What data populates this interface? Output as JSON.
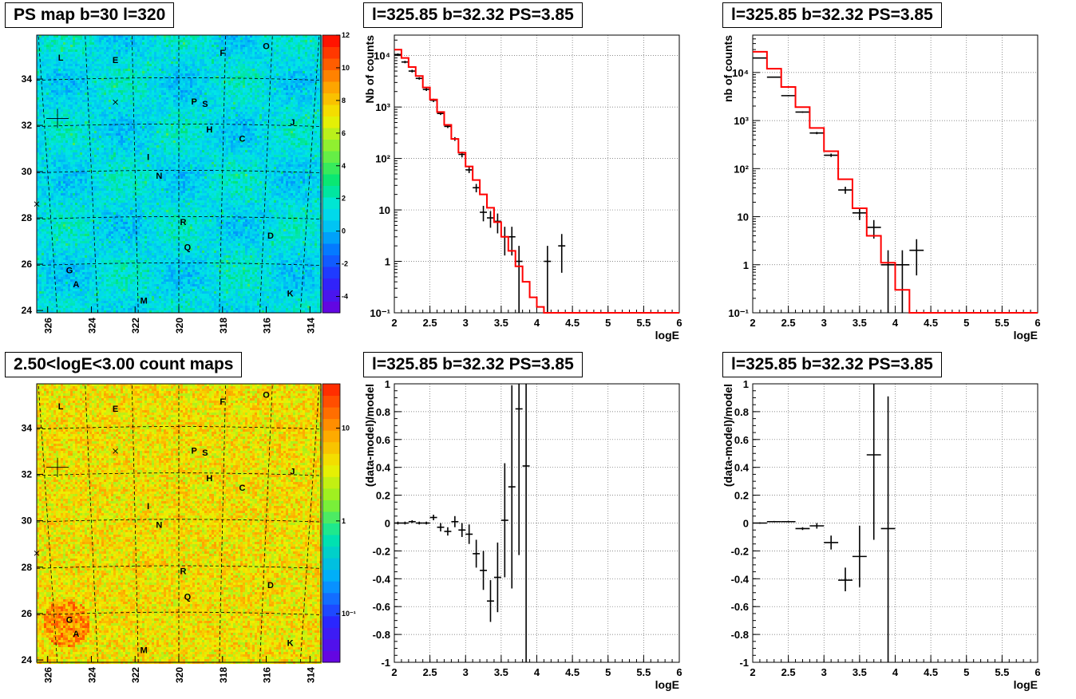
{
  "titles": {
    "map_top": "PS map b=30 l=320",
    "map_bottom": "2.50<logE<3.00 count maps",
    "spec_mid": "l=325.85 b=32.32 PS=3.85",
    "spec_right": "l=325.85 b=32.32 PS=3.85",
    "res_mid": "l=325.85 b=32.32 PS=3.85",
    "res_right": "l=325.85 b=32.32 PS=3.85"
  },
  "colors": {
    "data": "#000000",
    "model": "#ff0000",
    "grid": "#666666"
  },
  "chart_data": [
    {
      "id": "ps_map",
      "type": "heatmap",
      "title": "PS map b=30 l=320",
      "xlim": [
        326.5,
        313.5
      ],
      "ylim": [
        23.9,
        35.9
      ],
      "x_ticks": [
        "326",
        "324",
        "322",
        "320",
        "318",
        "316",
        "314"
      ],
      "y_ticks": [
        "24",
        "26",
        "28",
        "30",
        "32",
        "34"
      ],
      "colorbar_ticks": [
        "-4",
        "-2",
        "0",
        "2",
        "4",
        "6",
        "8",
        "10",
        "12"
      ],
      "colorbar_range": [
        -5,
        12
      ],
      "source_labels": [
        {
          "label": "L",
          "l": 325.4,
          "b": 34.8
        },
        {
          "label": "E",
          "l": 322.9,
          "b": 34.7
        },
        {
          "label": "F",
          "l": 318.0,
          "b": 35.0
        },
        {
          "label": "O",
          "l": 316.0,
          "b": 35.3
        },
        {
          "label": "P",
          "l": 319.3,
          "b": 32.9
        },
        {
          "label": "S",
          "l": 318.8,
          "b": 32.8
        },
        {
          "label": "H",
          "l": 318.6,
          "b": 31.7
        },
        {
          "label": "J",
          "l": 314.8,
          "b": 32.0
        },
        {
          "label": "C",
          "l": 317.1,
          "b": 31.3
        },
        {
          "label": "I",
          "l": 321.4,
          "b": 30.5
        },
        {
          "label": "N",
          "l": 320.9,
          "b": 29.7
        },
        {
          "label": "R",
          "l": 319.8,
          "b": 27.7
        },
        {
          "label": "D",
          "l": 315.8,
          "b": 27.1
        },
        {
          "label": "Q",
          "l": 319.6,
          "b": 26.6
        },
        {
          "label": "G",
          "l": 325.0,
          "b": 25.6
        },
        {
          "label": "A",
          "l": 324.7,
          "b": 25.0
        },
        {
          "label": "K",
          "l": 314.9,
          "b": 24.6
        },
        {
          "label": "M",
          "l": 321.6,
          "b": 24.3
        }
      ]
    },
    {
      "id": "count_map",
      "type": "heatmap",
      "title": "2.50<logE<3.00 count maps",
      "xlim": [
        326.5,
        313.5
      ],
      "ylim": [
        23.9,
        35.9
      ],
      "x_ticks": [
        "326",
        "324",
        "322",
        "320",
        "318",
        "316",
        "314"
      ],
      "y_ticks": [
        "24",
        "26",
        "28",
        "30",
        "32",
        "34"
      ],
      "colorbar_ticks": [
        "10",
        "1",
        "10⁻¹"
      ],
      "log_scale": true,
      "colorbar_range": [
        0.03,
        30
      ]
    },
    {
      "id": "spectrum_fine",
      "type": "line",
      "title": "l=325.85 b=32.32 PS=3.85",
      "xlabel": "logE",
      "ylabel": "Nb of counts",
      "xlim": [
        2,
        6
      ],
      "ylim": [
        0.1,
        25000
      ],
      "log_y": true,
      "grid": true,
      "x_ticks": [
        "2",
        "2.5",
        "3",
        "3.5",
        "4",
        "4.5",
        "5",
        "5.5",
        "6"
      ],
      "y_ticks": [
        {
          "v": 0.1,
          "t": "10⁻¹"
        },
        {
          "v": 1,
          "t": "1"
        },
        {
          "v": 10,
          "t": "10"
        },
        {
          "v": 100,
          "t": "10²"
        },
        {
          "v": 1000,
          "t": "10³"
        },
        {
          "v": 10000,
          "t": "10⁴"
        }
      ],
      "series": [
        {
          "name": "model",
          "bin_edges": [
            2.0,
            2.1,
            2.2,
            2.3,
            2.4,
            2.5,
            2.6,
            2.7,
            2.8,
            2.9,
            3.0,
            3.1,
            3.2,
            3.3,
            3.4,
            3.5,
            3.6,
            3.7,
            3.8,
            3.9,
            4.0,
            4.1,
            4.2,
            4.3,
            6.0
          ],
          "values": [
            13000,
            9000,
            6000,
            4000,
            2400,
            1400,
            800,
            450,
            240,
            130,
            70,
            38,
            20,
            11,
            5.8,
            3.0,
            1.6,
            0.8,
            0.4,
            0.2,
            0.13,
            0.1,
            0.05,
            0.1
          ]
        },
        {
          "name": "data",
          "points": [
            {
              "x": 2.05,
              "y": 10500,
              "lo": 10000,
              "hi": 11000
            },
            {
              "x": 2.15,
              "y": 7500,
              "lo": 7100,
              "hi": 7900
            },
            {
              "x": 2.25,
              "y": 5000,
              "lo": 4700,
              "hi": 5300
            },
            {
              "x": 2.35,
              "y": 3600,
              "lo": 3400,
              "hi": 3800
            },
            {
              "x": 2.45,
              "y": 2200,
              "lo": 2050,
              "hi": 2350
            },
            {
              "x": 2.55,
              "y": 1350,
              "lo": 1250,
              "hi": 1450
            },
            {
              "x": 2.65,
              "y": 750,
              "lo": 700,
              "hi": 800
            },
            {
              "x": 2.75,
              "y": 420,
              "lo": 390,
              "hi": 450
            },
            {
              "x": 2.85,
              "y": 240,
              "lo": 220,
              "hi": 260
            },
            {
              "x": 2.95,
              "y": 120,
              "lo": 105,
              "hi": 135
            },
            {
              "x": 3.05,
              "y": 60,
              "lo": 52,
              "hi": 68
            },
            {
              "x": 3.15,
              "y": 27,
              "lo": 22,
              "hi": 32
            },
            {
              "x": 3.25,
              "y": 9,
              "lo": 6,
              "hi": 12
            },
            {
              "x": 3.35,
              "y": 7,
              "lo": 4.5,
              "hi": 9.5
            },
            {
              "x": 3.45,
              "y": 6,
              "lo": 3.5,
              "hi": 8.5
            },
            {
              "x": 3.55,
              "y": 3,
              "lo": 1.3,
              "hi": 4.7
            },
            {
              "x": 3.65,
              "y": 3,
              "lo": 1.3,
              "hi": 4.7
            },
            {
              "x": 3.75,
              "y": 1,
              "lo": 0.1,
              "hi": 2.0
            },
            {
              "x": 4.15,
              "y": 1,
              "lo": 0.1,
              "hi": 2.0
            },
            {
              "x": 4.35,
              "y": 2,
              "lo": 0.6,
              "hi": 3.4
            }
          ]
        }
      ]
    },
    {
      "id": "spectrum_coarse",
      "type": "line",
      "title": "l=325.85 b=32.32 PS=3.85",
      "xlabel": "logE",
      "ylabel": "nb of counts",
      "xlim": [
        2,
        6
      ],
      "ylim": [
        0.1,
        60000
      ],
      "log_y": true,
      "grid": true,
      "x_ticks": [
        "2",
        "2.5",
        "3",
        "3.5",
        "4",
        "4.5",
        "5",
        "5.5",
        "6"
      ],
      "y_ticks": [
        {
          "v": 0.1,
          "t": "10⁻¹"
        },
        {
          "v": 1,
          "t": "1"
        },
        {
          "v": 10,
          "t": "10"
        },
        {
          "v": 100,
          "t": "10²"
        },
        {
          "v": 1000,
          "t": "10³"
        },
        {
          "v": 10000,
          "t": "10⁴"
        }
      ],
      "series": [
        {
          "name": "model",
          "bin_edges": [
            2.0,
            2.2,
            2.4,
            2.6,
            2.8,
            3.0,
            3.2,
            3.4,
            3.6,
            3.8,
            4.0,
            4.2,
            6.0
          ],
          "values": [
            27000,
            12000,
            5000,
            1900,
            700,
            230,
            60,
            15,
            4,
            1.1,
            0.3,
            0.1
          ]
        },
        {
          "name": "data",
          "points": [
            {
              "x": 2.1,
              "y": 20000,
              "lo": 19500,
              "hi": 20500
            },
            {
              "x": 2.3,
              "y": 8000,
              "lo": 7800,
              "hi": 8200
            },
            {
              "x": 2.5,
              "y": 3300,
              "lo": 3200,
              "hi": 3400
            },
            {
              "x": 2.7,
              "y": 1500,
              "lo": 1450,
              "hi": 1550
            },
            {
              "x": 2.9,
              "y": 550,
              "lo": 520,
              "hi": 580
            },
            {
              "x": 3.1,
              "y": 190,
              "lo": 175,
              "hi": 205
            },
            {
              "x": 3.3,
              "y": 36,
              "lo": 30,
              "hi": 42
            },
            {
              "x": 3.5,
              "y": 12,
              "lo": 8.5,
              "hi": 15.5
            },
            {
              "x": 3.7,
              "y": 6,
              "lo": 3.5,
              "hi": 8.5
            },
            {
              "x": 3.9,
              "y": 1,
              "lo": 0.1,
              "hi": 2.0
            },
            {
              "x": 4.1,
              "y": 1,
              "lo": 0.1,
              "hi": 2.0
            },
            {
              "x": 4.3,
              "y": 2,
              "lo": 0.6,
              "hi": 3.4
            }
          ]
        }
      ]
    },
    {
      "id": "residual_fine",
      "type": "scatter",
      "title": "l=325.85 b=32.32 PS=3.85",
      "xlabel": "logE",
      "ylabel": "(data-model)/model",
      "xlim": [
        2,
        6
      ],
      "ylim": [
        -1,
        1
      ],
      "grid": true,
      "x_ticks": [
        "2",
        "2.5",
        "3",
        "3.5",
        "4",
        "4.5",
        "5",
        "5.5",
        "6"
      ],
      "y_ticks": [
        "-1",
        "-0.8",
        "-0.6",
        "-0.4",
        "-0.2",
        "0",
        "0.2",
        "0.4",
        "0.6",
        "0.8",
        "1"
      ],
      "series": [
        {
          "name": "data",
          "points": [
            {
              "x": 2.05,
              "y": 0.0,
              "lo": -0.01,
              "hi": 0.01
            },
            {
              "x": 2.15,
              "y": 0.0,
              "lo": -0.01,
              "hi": 0.01
            },
            {
              "x": 2.25,
              "y": 0.01,
              "lo": 0.0,
              "hi": 0.02
            },
            {
              "x": 2.35,
              "y": 0.0,
              "lo": -0.01,
              "hi": 0.01
            },
            {
              "x": 2.45,
              "y": 0.0,
              "lo": -0.01,
              "hi": 0.01
            },
            {
              "x": 2.55,
              "y": 0.04,
              "lo": 0.02,
              "hi": 0.06
            },
            {
              "x": 2.65,
              "y": -0.03,
              "lo": -0.06,
              "hi": 0.0
            },
            {
              "x": 2.75,
              "y": -0.06,
              "lo": -0.09,
              "hi": -0.03
            },
            {
              "x": 2.85,
              "y": 0.01,
              "lo": -0.03,
              "hi": 0.05
            },
            {
              "x": 2.95,
              "y": -0.05,
              "lo": -0.1,
              "hi": 0.0
            },
            {
              "x": 3.05,
              "y": -0.08,
              "lo": -0.15,
              "hi": -0.01
            },
            {
              "x": 3.15,
              "y": -0.22,
              "lo": -0.32,
              "hi": -0.12
            },
            {
              "x": 3.25,
              "y": -0.34,
              "lo": -0.48,
              "hi": -0.2
            },
            {
              "x": 3.35,
              "y": -0.56,
              "lo": -0.71,
              "hi": -0.41
            },
            {
              "x": 3.45,
              "y": -0.39,
              "lo": -0.64,
              "hi": -0.14
            },
            {
              "x": 3.55,
              "y": 0.02,
              "lo": -0.39,
              "hi": 0.43
            },
            {
              "x": 3.65,
              "y": 0.26,
              "lo": -0.47,
              "hi": 0.99
            },
            {
              "x": 3.75,
              "y": 0.82,
              "lo": -0.23,
              "hi": 1.0
            },
            {
              "x": 3.85,
              "y": 0.41,
              "lo": -1.0,
              "hi": 1.0
            }
          ]
        }
      ]
    },
    {
      "id": "residual_coarse",
      "type": "scatter",
      "title": "l=325.85 b=32.32 PS=3.85",
      "xlabel": "logE",
      "ylabel": "(data-model)/model",
      "xlim": [
        2,
        6
      ],
      "ylim": [
        -1,
        1
      ],
      "grid": true,
      "x_ticks": [
        "2",
        "2.5",
        "3",
        "3.5",
        "4",
        "4.5",
        "5",
        "5.5",
        "6"
      ],
      "y_ticks": [
        "-1",
        "-0.8",
        "-0.6",
        "-0.4",
        "-0.2",
        "0",
        "0.2",
        "0.4",
        "0.6",
        "0.8",
        "1"
      ],
      "series": [
        {
          "name": "data",
          "points": [
            {
              "x": 2.1,
              "y": 0.0,
              "lo": -0.005,
              "hi": 0.005
            },
            {
              "x": 2.3,
              "y": 0.01,
              "lo": 0.005,
              "hi": 0.015
            },
            {
              "x": 2.5,
              "y": 0.01,
              "lo": 0.005,
              "hi": 0.015
            },
            {
              "x": 2.7,
              "y": -0.04,
              "lo": -0.05,
              "hi": -0.03
            },
            {
              "x": 2.9,
              "y": -0.02,
              "lo": -0.04,
              "hi": 0.0
            },
            {
              "x": 3.1,
              "y": -0.14,
              "lo": -0.19,
              "hi": -0.09
            },
            {
              "x": 3.3,
              "y": -0.41,
              "lo": -0.49,
              "hi": -0.32
            },
            {
              "x": 3.5,
              "y": -0.24,
              "lo": -0.46,
              "hi": -0.02
            },
            {
              "x": 3.7,
              "y": 0.49,
              "lo": -0.12,
              "hi": 1.0
            },
            {
              "x": 3.9,
              "y": -0.04,
              "lo": -1.0,
              "hi": 0.91
            }
          ]
        }
      ]
    }
  ]
}
